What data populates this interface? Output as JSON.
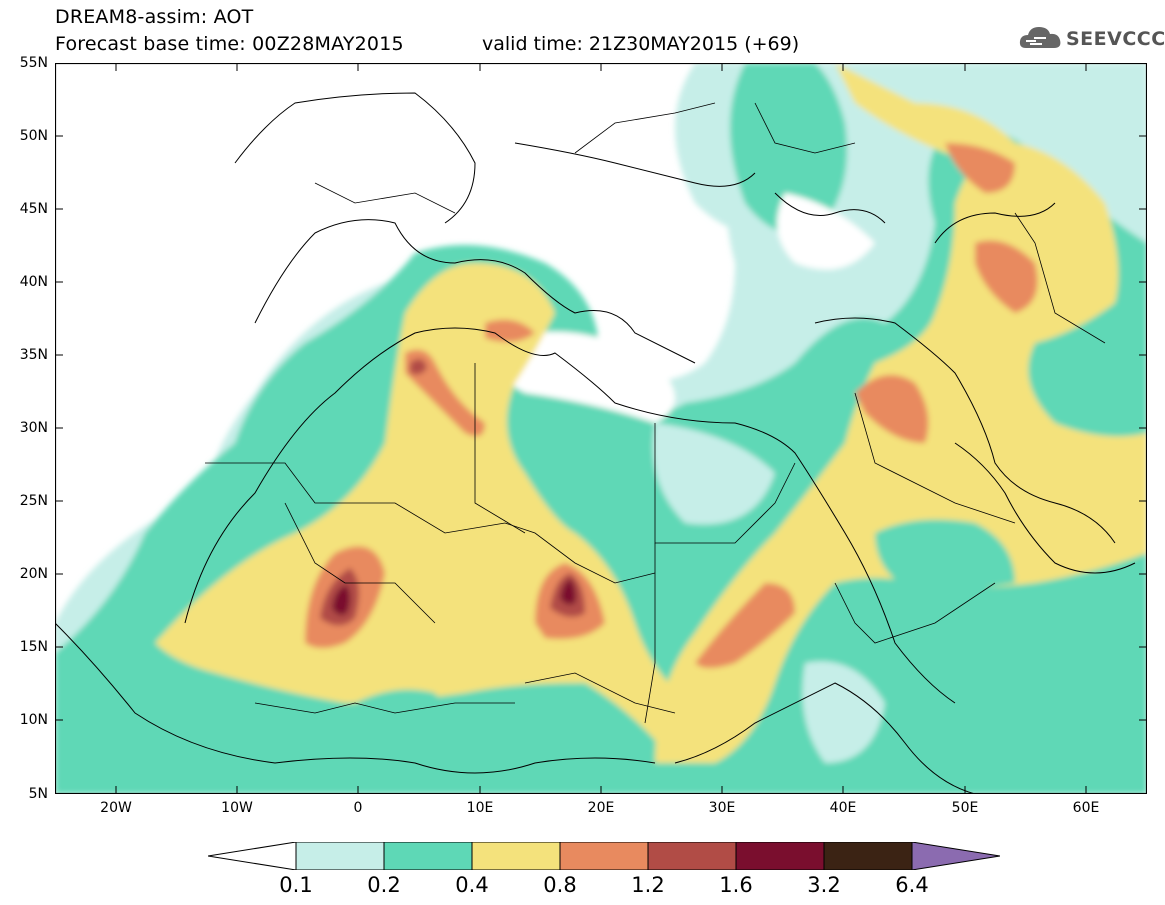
{
  "header": {
    "line1": "DREAM8-assim: AOT",
    "line2": "Forecast base time: 00Z28MAY2015",
    "valid": "valid time: 21Z30MAY2015 (+69)"
  },
  "logo": {
    "text": "SEEVCCC",
    "icon": "cloud-icon"
  },
  "axes": {
    "y_ticks": [
      "55N",
      "50N",
      "45N",
      "40N",
      "35N",
      "30N",
      "25N",
      "20N",
      "15N",
      "10N",
      "5N"
    ],
    "x_ticks": [
      "20W",
      "10W",
      "0",
      "10E",
      "20E",
      "30E",
      "40E",
      "50E",
      "60E"
    ],
    "lon_range": [
      -25,
      65
    ],
    "lat_range": [
      5,
      55
    ]
  },
  "colorbar": {
    "labels": [
      "0.1",
      "0.2",
      "0.4",
      "0.8",
      "1.2",
      "1.6",
      "3.2",
      "6.4"
    ],
    "colors": [
      "#ffffff",
      "#c6eee8",
      "#5ed8b6",
      "#f4e27c",
      "#e88a5f",
      "#b14c46",
      "#7a0e2e",
      "#3b2314",
      "#8b6bb0"
    ]
  }
}
